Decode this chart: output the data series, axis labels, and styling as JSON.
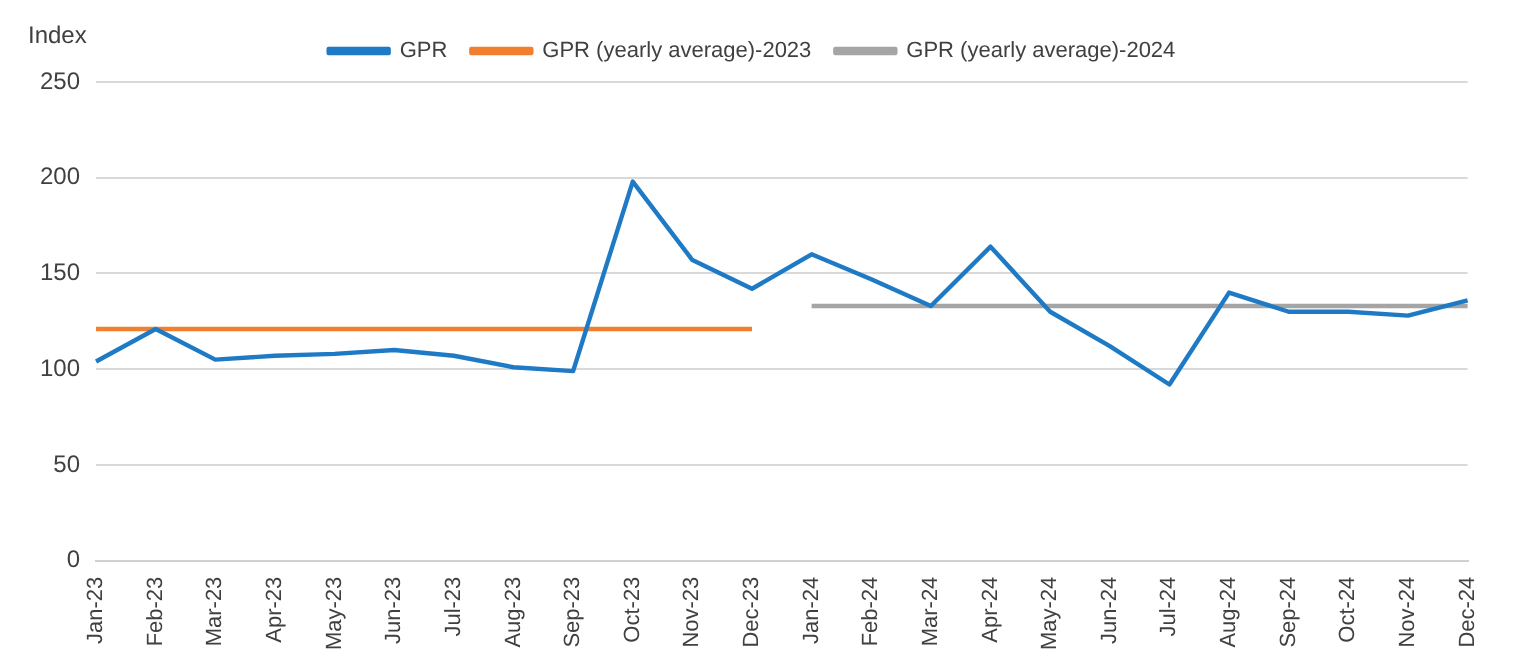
{
  "chart_data": {
    "type": "line",
    "ylabel": "Index",
    "categories": [
      "Jan-23",
      "Feb-23",
      "Mar-23",
      "Apr-23",
      "May-23",
      "Jun-23",
      "Jul-23",
      "Aug-23",
      "Sep-23",
      "Oct-23",
      "Nov-23",
      "Dec-23",
      "Jan-24",
      "Feb-24",
      "Mar-24",
      "Apr-24",
      "May-24",
      "Jun-24",
      "Jul-24",
      "Aug-24",
      "Sep-24",
      "Oct-24",
      "Nov-24",
      "Dec-24"
    ],
    "series": [
      {
        "name": "GPR",
        "color": "#1f7ac6",
        "values": [
          104,
          121,
          105,
          107,
          108,
          110,
          107,
          101,
          99,
          198,
          157,
          142,
          160,
          147,
          133,
          164,
          130,
          112,
          92,
          140,
          130,
          130,
          128,
          136
        ]
      },
      {
        "name": "GPR (yearly average)-2023",
        "color": "#f07f2f",
        "values": [
          121,
          121,
          121,
          121,
          121,
          121,
          121,
          121,
          121,
          121,
          121,
          121,
          null,
          null,
          null,
          null,
          null,
          null,
          null,
          null,
          null,
          null,
          null,
          null
        ]
      },
      {
        "name": "GPR (yearly average)-2024",
        "color": "#a5a5a5",
        "values": [
          null,
          null,
          null,
          null,
          null,
          null,
          null,
          null,
          null,
          null,
          null,
          null,
          133,
          133,
          133,
          133,
          133,
          133,
          133,
          133,
          133,
          133,
          133,
          133
        ]
      }
    ],
    "ylim": [
      0,
      250
    ],
    "yticks": [
      0,
      50,
      100,
      150,
      200,
      250
    ],
    "grid": "y",
    "legend": "top",
    "marker": "none",
    "line_style": "solid"
  }
}
